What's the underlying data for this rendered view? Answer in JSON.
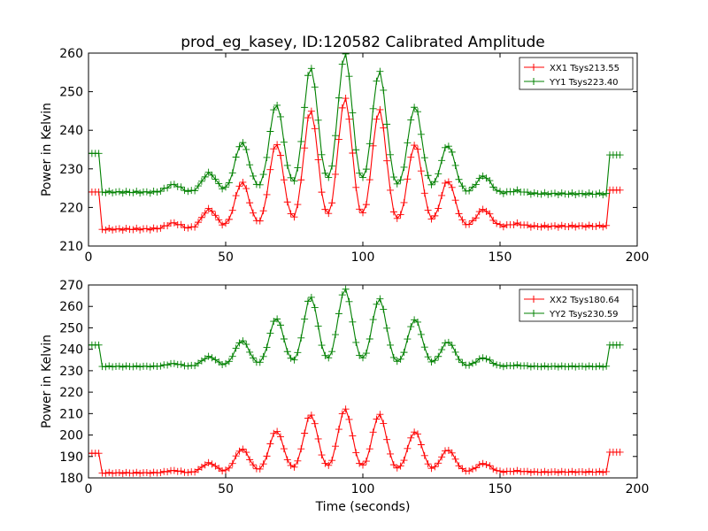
{
  "chart_data": [
    {
      "type": "line",
      "title": "prod_eg_kasey, ID:120582 Calibrated Amplitude",
      "xlabel": "",
      "ylabel": "Power in Kelvin",
      "xlim": [
        0,
        200
      ],
      "ylim": [
        210,
        260
      ],
      "xticks": [
        0,
        50,
        100,
        150,
        200
      ],
      "yticks": [
        210,
        220,
        230,
        240,
        250,
        260
      ],
      "grid": false,
      "legend_position": "top-right",
      "marker": "plus",
      "x_range": [
        0,
        194
      ],
      "x_step": 1.25,
      "series": [
        {
          "name": "XX1 Tsys213.55",
          "color": "#ff0000",
          "on_range": [
            0,
            4
          ],
          "on_level": 224,
          "baseline_start": 214.3,
          "baseline_end": 215.2,
          "tail_start": 190,
          "tail_level": 224.5,
          "peaks": [
            {
              "x": 31,
              "height": 1.5
            },
            {
              "x": 44,
              "height": 5
            },
            {
              "x": 56,
              "height": 12
            },
            {
              "x": 68.5,
              "height": 22
            },
            {
              "x": 81,
              "height": 30.5
            },
            {
              "x": 93.5,
              "height": 33.5
            },
            {
              "x": 106,
              "height": 30.5
            },
            {
              "x": 119,
              "height": 21.5
            },
            {
              "x": 131,
              "height": 12
            },
            {
              "x": 144,
              "height": 4.5
            },
            {
              "x": 156,
              "height": 0.7
            }
          ]
        },
        {
          "name": "YY1 Tsys223.40",
          "color": "#008000",
          "on_range": [
            0,
            4
          ],
          "on_level": 234,
          "baseline_start": 224,
          "baseline_end": 223.5,
          "tail_start": 190,
          "tail_level": 233.6,
          "peaks": [
            {
              "x": 31,
              "height": 2
            },
            {
              "x": 44,
              "height": 5
            },
            {
              "x": 56,
              "height": 13
            },
            {
              "x": 68.5,
              "height": 23
            },
            {
              "x": 81,
              "height": 32.5
            },
            {
              "x": 93.5,
              "height": 36
            },
            {
              "x": 106,
              "height": 31.5
            },
            {
              "x": 119,
              "height": 22.5
            },
            {
              "x": 131,
              "height": 12.5
            },
            {
              "x": 144,
              "height": 4.5
            },
            {
              "x": 156,
              "height": 0.7
            }
          ]
        }
      ]
    },
    {
      "type": "line",
      "title": "",
      "xlabel": "Time (seconds)",
      "ylabel": "Power in Kelvin",
      "xlim": [
        0,
        200
      ],
      "ylim": [
        180,
        270
      ],
      "xticks": [
        0,
        50,
        100,
        150,
        200
      ],
      "yticks": [
        180,
        190,
        200,
        210,
        220,
        230,
        240,
        250,
        260,
        270
      ],
      "grid": false,
      "legend_position": "top-right",
      "marker": "plus",
      "x_range": [
        0,
        194
      ],
      "x_step": 1.25,
      "series": [
        {
          "name": "XX2 Tsys180.64",
          "color": "#ff0000",
          "on_range": [
            0,
            4
          ],
          "on_level": 191.5,
          "baseline_start": 182.3,
          "baseline_end": 182.8,
          "tail_start": 190,
          "tail_level": 192,
          "peaks": [
            {
              "x": 31,
              "height": 1
            },
            {
              "x": 44,
              "height": 4.5
            },
            {
              "x": 56,
              "height": 11
            },
            {
              "x": 68.5,
              "height": 19.5
            },
            {
              "x": 81,
              "height": 27
            },
            {
              "x": 93.5,
              "height": 29.5
            },
            {
              "x": 106,
              "height": 27
            },
            {
              "x": 119,
              "height": 19
            },
            {
              "x": 131,
              "height": 10.5
            },
            {
              "x": 144,
              "height": 4
            },
            {
              "x": 156,
              "height": 0.5
            }
          ]
        },
        {
          "name": "YY2 Tsys230.59",
          "color": "#008000",
          "on_range": [
            0,
            4
          ],
          "on_level": 242,
          "baseline_start": 232,
          "baseline_end": 232,
          "tail_start": 190,
          "tail_level": 242,
          "peaks": [
            {
              "x": 31,
              "height": 1.3
            },
            {
              "x": 44,
              "height": 4.5
            },
            {
              "x": 56,
              "height": 12
            },
            {
              "x": 68.5,
              "height": 22.5
            },
            {
              "x": 81,
              "height": 32.5
            },
            {
              "x": 93.5,
              "height": 36
            },
            {
              "x": 106,
              "height": 31.5
            },
            {
              "x": 119,
              "height": 22
            },
            {
              "x": 131,
              "height": 11.5
            },
            {
              "x": 144,
              "height": 4
            },
            {
              "x": 156,
              "height": 0.5
            }
          ]
        }
      ]
    }
  ]
}
